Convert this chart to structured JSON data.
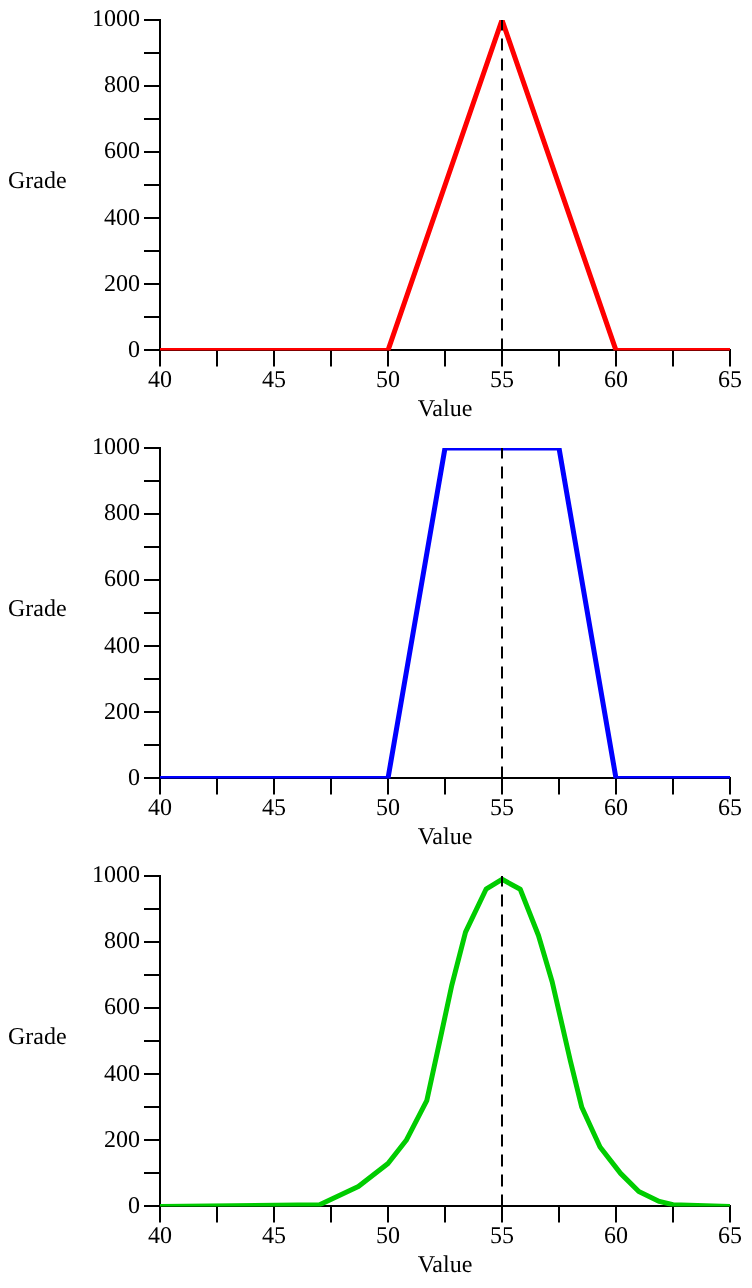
{
  "chart_data": [
    {
      "type": "line",
      "xlabel": "Value",
      "ylabel": "Grade",
      "x": [
        40,
        50,
        55,
        60,
        65
      ],
      "series": [
        {
          "color": "#ff0000",
          "values": [
            0,
            0,
            1000,
            0,
            0
          ]
        }
      ],
      "xlim": [
        40,
        65
      ],
      "ylim": [
        0,
        1000
      ],
      "xticks": [
        40,
        {
          "value": 42.5,
          "label": null
        },
        45,
        {
          "value": 47.5,
          "label": null
        },
        50,
        {
          "value": 52.5,
          "label": null
        },
        55,
        {
          "value": 57.5,
          "label": null
        },
        60,
        {
          "value": 62.5,
          "label": null
        },
        65
      ],
      "yticks": [
        0,
        {
          "value": 100,
          "label": null
        },
        200,
        {
          "value": 300,
          "label": null
        },
        400,
        {
          "value": 500,
          "label": null
        },
        600,
        {
          "value": 700,
          "label": null
        },
        800,
        {
          "value": 900,
          "label": null
        },
        1000
      ],
      "ref_lines": [
        {
          "axis": "x",
          "value": 55,
          "color": "#000000",
          "line_style": "dashed"
        }
      ],
      "grid": false
    },
    {
      "type": "line",
      "xlabel": "Value",
      "ylabel": "Grade",
      "x": [
        40,
        50,
        52.5,
        57.5,
        60,
        65
      ],
      "series": [
        {
          "color": "#0000ff",
          "values": [
            0,
            0,
            1000,
            1000,
            0,
            0
          ]
        }
      ],
      "xlim": [
        40,
        65
      ],
      "ylim": [
        0,
        1000
      ],
      "xticks": [
        40,
        {
          "value": 42.5,
          "label": null
        },
        45,
        {
          "value": 47.5,
          "label": null
        },
        50,
        {
          "value": 52.5,
          "label": null
        },
        55,
        {
          "value": 57.5,
          "label": null
        },
        60,
        {
          "value": 62.5,
          "label": null
        },
        65
      ],
      "yticks": [
        0,
        {
          "value": 100,
          "label": null
        },
        200,
        {
          "value": 300,
          "label": null
        },
        400,
        {
          "value": 500,
          "label": null
        },
        600,
        {
          "value": 700,
          "label": null
        },
        800,
        {
          "value": 900,
          "label": null
        },
        1000
      ],
      "ref_lines": [
        {
          "axis": "x",
          "value": 55,
          "color": "#000000",
          "line_style": "dashed"
        }
      ],
      "grid": false
    },
    {
      "type": "line",
      "xlabel": "Value",
      "ylabel": "Grade",
      "x": [
        40,
        47,
        48.7,
        50,
        50.8,
        51.7,
        52.3,
        52.8,
        53.4,
        54.3,
        55,
        55.8,
        56.6,
        57.2,
        58,
        58.5,
        59.3,
        60.2,
        61,
        61.9,
        62.5,
        65
      ],
      "series": [
        {
          "color": "#00cc00",
          "values": [
            0,
            5,
            60,
            130,
            200,
            320,
            510,
            670,
            830,
            960,
            990,
            960,
            820,
            680,
            440,
            300,
            180,
            100,
            45,
            15,
            5,
            0
          ]
        }
      ],
      "xlim": [
        40,
        65
      ],
      "ylim": [
        0,
        1000
      ],
      "xticks": [
        40,
        {
          "value": 42.5,
          "label": null
        },
        45,
        {
          "value": 47.5,
          "label": null
        },
        50,
        {
          "value": 52.5,
          "label": null
        },
        55,
        {
          "value": 57.5,
          "label": null
        },
        60,
        {
          "value": 62.5,
          "label": null
        },
        65
      ],
      "yticks": [
        0,
        {
          "value": 100,
          "label": null
        },
        200,
        {
          "value": 300,
          "label": null
        },
        400,
        {
          "value": 500,
          "label": null
        },
        600,
        {
          "value": 700,
          "label": null
        },
        800,
        {
          "value": 900,
          "label": null
        },
        1000
      ],
      "ref_lines": [
        {
          "axis": "x",
          "value": 55,
          "color": "#000000",
          "line_style": "dashed"
        }
      ],
      "grid": false
    }
  ]
}
